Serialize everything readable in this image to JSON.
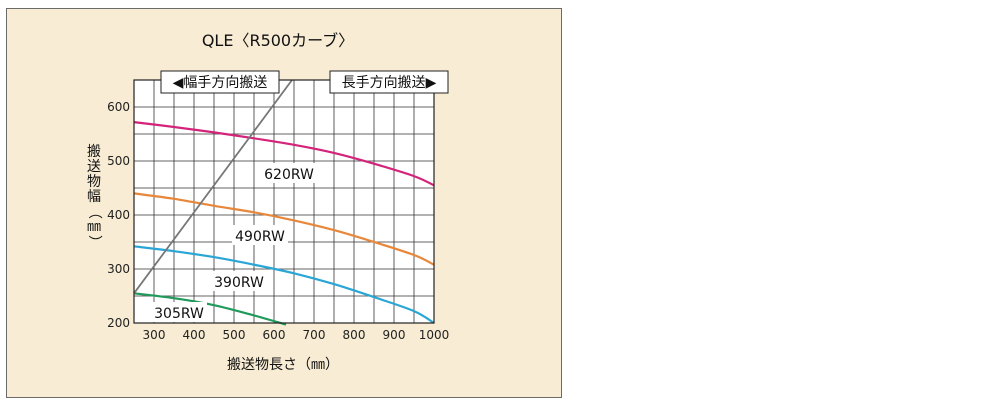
{
  "chart_data": {
    "type": "line",
    "title": "QLE〈R500カーブ〉",
    "xlabel": "搬送物長さ（㎜）",
    "ylabel": "搬送物幅（㎜）",
    "xlim": [
      250,
      1000
    ],
    "ylim": [
      200,
      650
    ],
    "x_ticks": [
      "300",
      "400",
      "500",
      "600",
      "700",
      "800",
      "900",
      "1000"
    ],
    "y_ticks": [
      "200",
      "300",
      "400",
      "500",
      "600"
    ],
    "x_tick_values": [
      300,
      400,
      500,
      600,
      700,
      800,
      900,
      1000
    ],
    "y_tick_values": [
      200,
      300,
      400,
      500,
      600
    ],
    "grid": true,
    "region_labels": {
      "left": "◀幅手方向搬送",
      "right": "長手方向搬送▶"
    },
    "series": [
      {
        "name": "620RW",
        "color": "#d4237a",
        "x": [
          250,
          350,
          450,
          550,
          650,
          750,
          850,
          950,
          1000
        ],
        "y": [
          572,
          563,
          553,
          542,
          530,
          515,
          495,
          472,
          455
        ]
      },
      {
        "name": "490RW",
        "color": "#e8873a",
        "x": [
          250,
          350,
          450,
          550,
          650,
          750,
          850,
          950,
          1000
        ],
        "y": [
          440,
          430,
          417,
          405,
          390,
          372,
          350,
          326,
          308
        ]
      },
      {
        "name": "390RW",
        "color": "#2aa6d6",
        "x": [
          250,
          350,
          450,
          550,
          650,
          750,
          850,
          950,
          1000
        ],
        "y": [
          342,
          333,
          322,
          308,
          292,
          272,
          248,
          222,
          200
        ]
      },
      {
        "name": "305RW",
        "color": "#1f9a5a",
        "x": [
          250,
          350,
          450,
          550,
          630
        ],
        "y": [
          255,
          246,
          233,
          214,
          197
        ]
      }
    ],
    "boundary_line": {
      "x": [
        250,
        645
      ],
      "y": [
        255,
        650
      ],
      "color": "#777777"
    }
  }
}
